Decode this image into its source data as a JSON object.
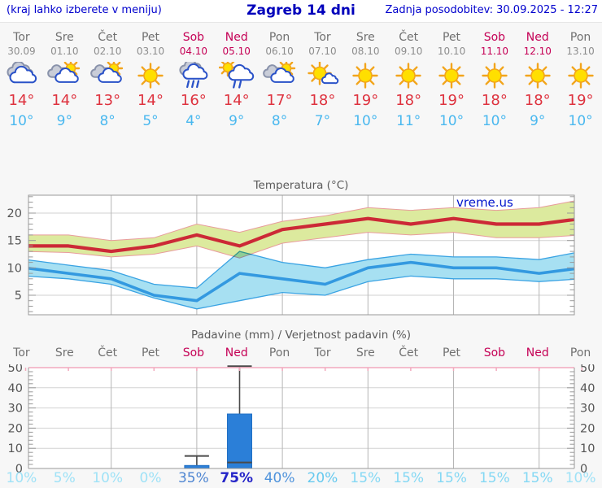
{
  "header": {
    "left": "(kraj lahko izberete v meniju)",
    "title": "Zagreb 14 dni",
    "updated": "Zadnja posodobitev: 30.09.2025 - 12:27"
  },
  "watermark": "vreme.us",
  "days": [
    {
      "name": "Tor",
      "date": "30.09",
      "weekend": false,
      "icon": "cloudy",
      "high": "14°",
      "low": "10°",
      "pop": "10%",
      "pop_color": "#9fe2f7",
      "pop_bold": false
    },
    {
      "name": "Sre",
      "date": "01.10",
      "weekend": false,
      "icon": "sun-cloud",
      "high": "14°",
      "low": "9°",
      "pop": "5%",
      "pop_color": "#9fe2f7",
      "pop_bold": false
    },
    {
      "name": "Čet",
      "date": "02.10",
      "weekend": false,
      "icon": "sun-cloud",
      "high": "13°",
      "low": "8°",
      "pop": "10%",
      "pop_color": "#9fe2f7",
      "pop_bold": false
    },
    {
      "name": "Pet",
      "date": "03.10",
      "weekend": false,
      "icon": "sunny",
      "high": "14°",
      "low": "5°",
      "pop": "0%",
      "pop_color": "#9fe2f7",
      "pop_bold": false
    },
    {
      "name": "Sob",
      "date": "04.10",
      "weekend": true,
      "icon": "rain",
      "high": "16°",
      "low": "4°",
      "pop": "35%",
      "pop_color": "#4f86d2",
      "pop_bold": false
    },
    {
      "name": "Ned",
      "date": "05.10",
      "weekend": true,
      "icon": "sun-rain",
      "high": "14°",
      "low": "9°",
      "pop": "75%",
      "pop_color": "#2525c8",
      "pop_bold": true
    },
    {
      "name": "Pon",
      "date": "06.10",
      "weekend": false,
      "icon": "sun-cloud",
      "high": "17°",
      "low": "8°",
      "pop": "40%",
      "pop_color": "#4f93dc",
      "pop_bold": false
    },
    {
      "name": "Tor",
      "date": "07.10",
      "weekend": false,
      "icon": "mostly-sunny",
      "high": "18°",
      "low": "7°",
      "pop": "20%",
      "pop_color": "#66c9ef",
      "pop_bold": false
    },
    {
      "name": "Sre",
      "date": "08.10",
      "weekend": false,
      "icon": "sunny",
      "high": "19°",
      "low": "10°",
      "pop": "15%",
      "pop_color": "#84d8f4",
      "pop_bold": false
    },
    {
      "name": "Čet",
      "date": "09.10",
      "weekend": false,
      "icon": "sunny",
      "high": "18°",
      "low": "11°",
      "pop": "15%",
      "pop_color": "#84d8f4",
      "pop_bold": false
    },
    {
      "name": "Pet",
      "date": "10.10",
      "weekend": false,
      "icon": "sunny",
      "high": "19°",
      "low": "10°",
      "pop": "15%",
      "pop_color": "#84d8f4",
      "pop_bold": false
    },
    {
      "name": "Sob",
      "date": "11.10",
      "weekend": true,
      "icon": "sunny",
      "high": "18°",
      "low": "10°",
      "pop": "15%",
      "pop_color": "#84d8f4",
      "pop_bold": false
    },
    {
      "name": "Ned",
      "date": "12.10",
      "weekend": true,
      "icon": "sunny",
      "high": "18°",
      "low": "9°",
      "pop": "15%",
      "pop_color": "#84d8f4",
      "pop_bold": false
    },
    {
      "name": "Pon",
      "date": "13.10",
      "weekend": false,
      "icon": "sunny",
      "high": "19°",
      "low": "10°",
      "pop": "10%",
      "pop_color": "#9fe2f7",
      "pop_bold": false
    }
  ],
  "chart_data": [
    {
      "type": "line",
      "title": "Temperatura (°C)",
      "categories": [
        "Tor 30.09",
        "Sre 01.10",
        "Čet 02.10",
        "Pet 03.10",
        "Sob 04.10",
        "Ned 05.10",
        "Pon 06.10",
        "Tor 07.10",
        "Sre 08.10",
        "Čet 09.10",
        "Pet 10.10",
        "Sob 11.10",
        "Ned 12.10",
        "Pon 13.10"
      ],
      "ylim": [
        1.4,
        23.3
      ],
      "yticks": [
        5,
        10,
        15,
        20
      ],
      "grid": "horizontal major + vertical every 2nd day",
      "series": [
        {
          "name": "max temperatura",
          "color": "#cc2936",
          "values": [
            14,
            14,
            13,
            14,
            16,
            14,
            17,
            18,
            19,
            18,
            19,
            18,
            18,
            19
          ]
        },
        {
          "name": "max razpon zgornja meja",
          "color": "#dcea9e",
          "values": [
            16,
            16,
            15,
            15.5,
            18,
            16.5,
            18.5,
            19.5,
            21,
            20.5,
            21,
            20.5,
            21,
            22.5
          ]
        },
        {
          "name": "max razpon spodnja meja",
          "color": "#dcea9e",
          "values": [
            13,
            12.8,
            12,
            12.5,
            14,
            11.8,
            14.5,
            15.5,
            16.5,
            16,
            16.5,
            15.5,
            15.5,
            16
          ]
        },
        {
          "name": "min temperatura",
          "color": "#3399e0",
          "values": [
            10,
            9,
            8,
            5,
            4,
            9,
            8,
            7,
            10,
            11,
            10,
            10,
            9,
            10
          ]
        },
        {
          "name": "min razpon zgornja meja",
          "color": "#a7e0f2",
          "values": [
            11.5,
            10.5,
            9.5,
            7,
            6.3,
            13,
            11,
            10,
            11.5,
            12.5,
            12,
            12,
            11.5,
            13
          ]
        },
        {
          "name": "min razpon spodnja meja",
          "color": "#a7e0f2",
          "values": [
            8.5,
            8,
            7,
            4.5,
            2.5,
            4,
            5.5,
            5,
            7.5,
            8.5,
            8,
            8,
            7.5,
            8
          ]
        }
      ],
      "band_borders": {
        "high": "#e89c9c",
        "low": "#3aa3e3"
      }
    },
    {
      "type": "bar",
      "title": "Padavine (mm) / Verjetnost padavin (%)",
      "categories": [
        "Tor",
        "Sre",
        "Čet",
        "Pet",
        "Sob",
        "Ned",
        "Pon",
        "Tor",
        "Sre",
        "Čet",
        "Pet",
        "Sob",
        "Ned",
        "Pon"
      ],
      "ylabel_left": "mm",
      "ylim": [
        0,
        52
      ],
      "yticks": [
        0,
        10,
        20,
        30,
        40,
        50
      ],
      "values_mm": [
        0,
        0,
        0,
        0,
        1.5,
        27,
        0,
        0,
        0,
        0,
        0,
        0,
        0,
        0
      ],
      "whisker_low": [
        null,
        null,
        null,
        null,
        0,
        3,
        null,
        null,
        null,
        null,
        null,
        null,
        null,
        null
      ],
      "whisker_high": [
        null,
        null,
        null,
        null,
        6.2,
        50.7,
        null,
        null,
        null,
        null,
        null,
        null,
        null,
        null
      ],
      "bar_color": "#2b7fd8",
      "probabilities": [
        "10%",
        "5%",
        "10%",
        "0%",
        "35%",
        "75%",
        "40%",
        "20%",
        "15%",
        "15%",
        "15%",
        "15%",
        "15%",
        "10%"
      ]
    }
  ]
}
